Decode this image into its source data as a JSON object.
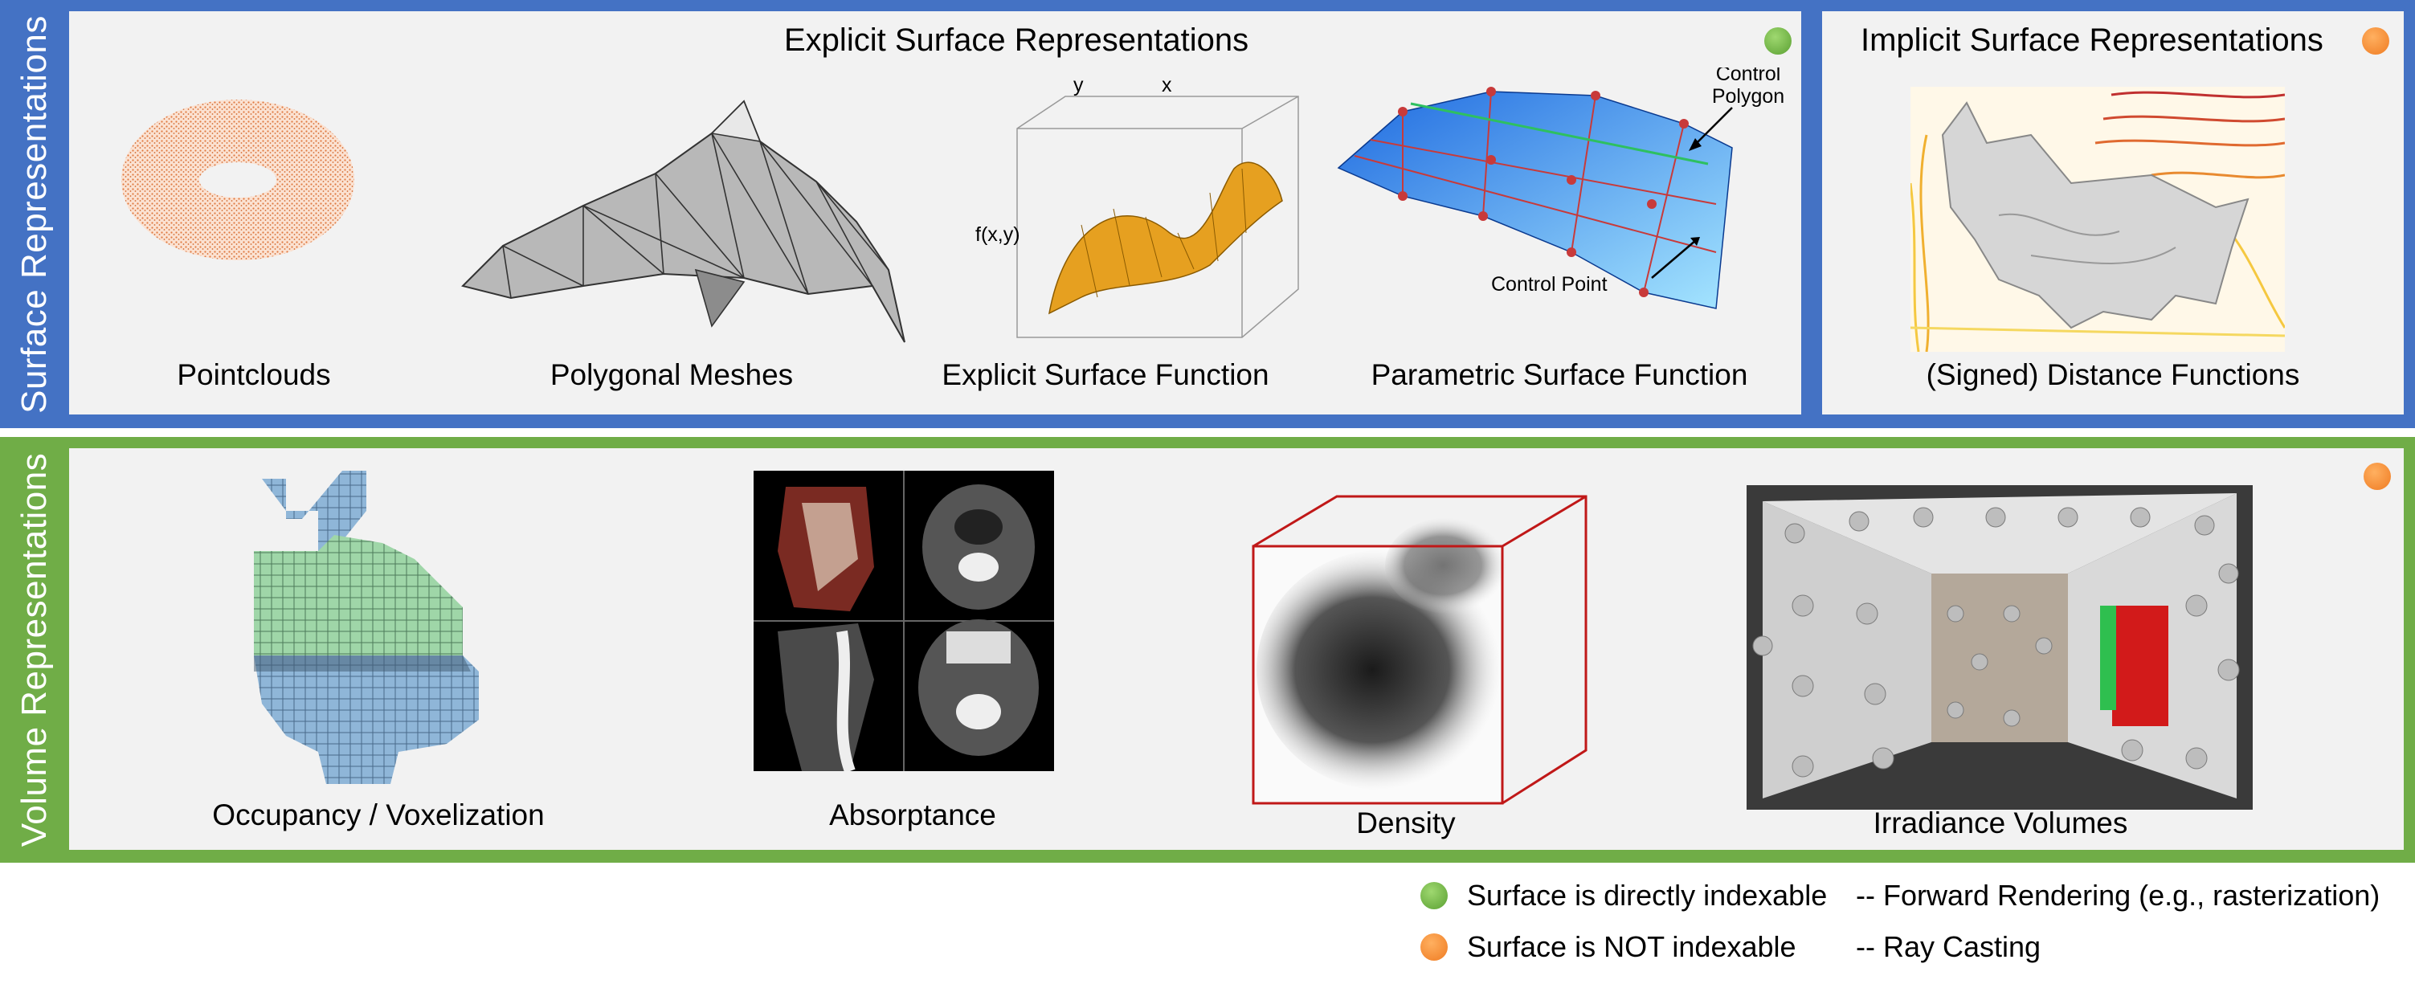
{
  "surface_section": {
    "label": "Surface Representations",
    "explicit": {
      "title": "Explicit Surface Representations",
      "captions": [
        "Pointclouds",
        "Polygonal Meshes",
        "Explicit Surface Function",
        "Parametric Surface Function"
      ],
      "annotations": {
        "control_polygon": [
          "Control",
          "Polygon"
        ],
        "control_point": "Control Point",
        "axis_y": "y",
        "axis_x": "x",
        "axis_f": "f(x,y)"
      }
    },
    "implicit": {
      "title": "Implicit Surface Representations",
      "caption": "(Signed) Distance Functions"
    }
  },
  "volume_section": {
    "label": "Volume Representations",
    "captions": [
      "Occupancy / Voxelization",
      "Absorptance",
      "Density",
      "Irradiance Volumes"
    ]
  },
  "legend": [
    {
      "marker": "green",
      "text": "Surface is directly indexable",
      "method": "-- Forward Rendering (e.g., rasterization)"
    },
    {
      "marker": "orange",
      "text": "Surface is NOT indexable",
      "method": "--  Ray Casting"
    }
  ],
  "colors": {
    "surface_band": "#4472c4",
    "volume_band": "#70ad47",
    "green_marker": "#6ab04c",
    "orange_marker": "#f08a30"
  }
}
